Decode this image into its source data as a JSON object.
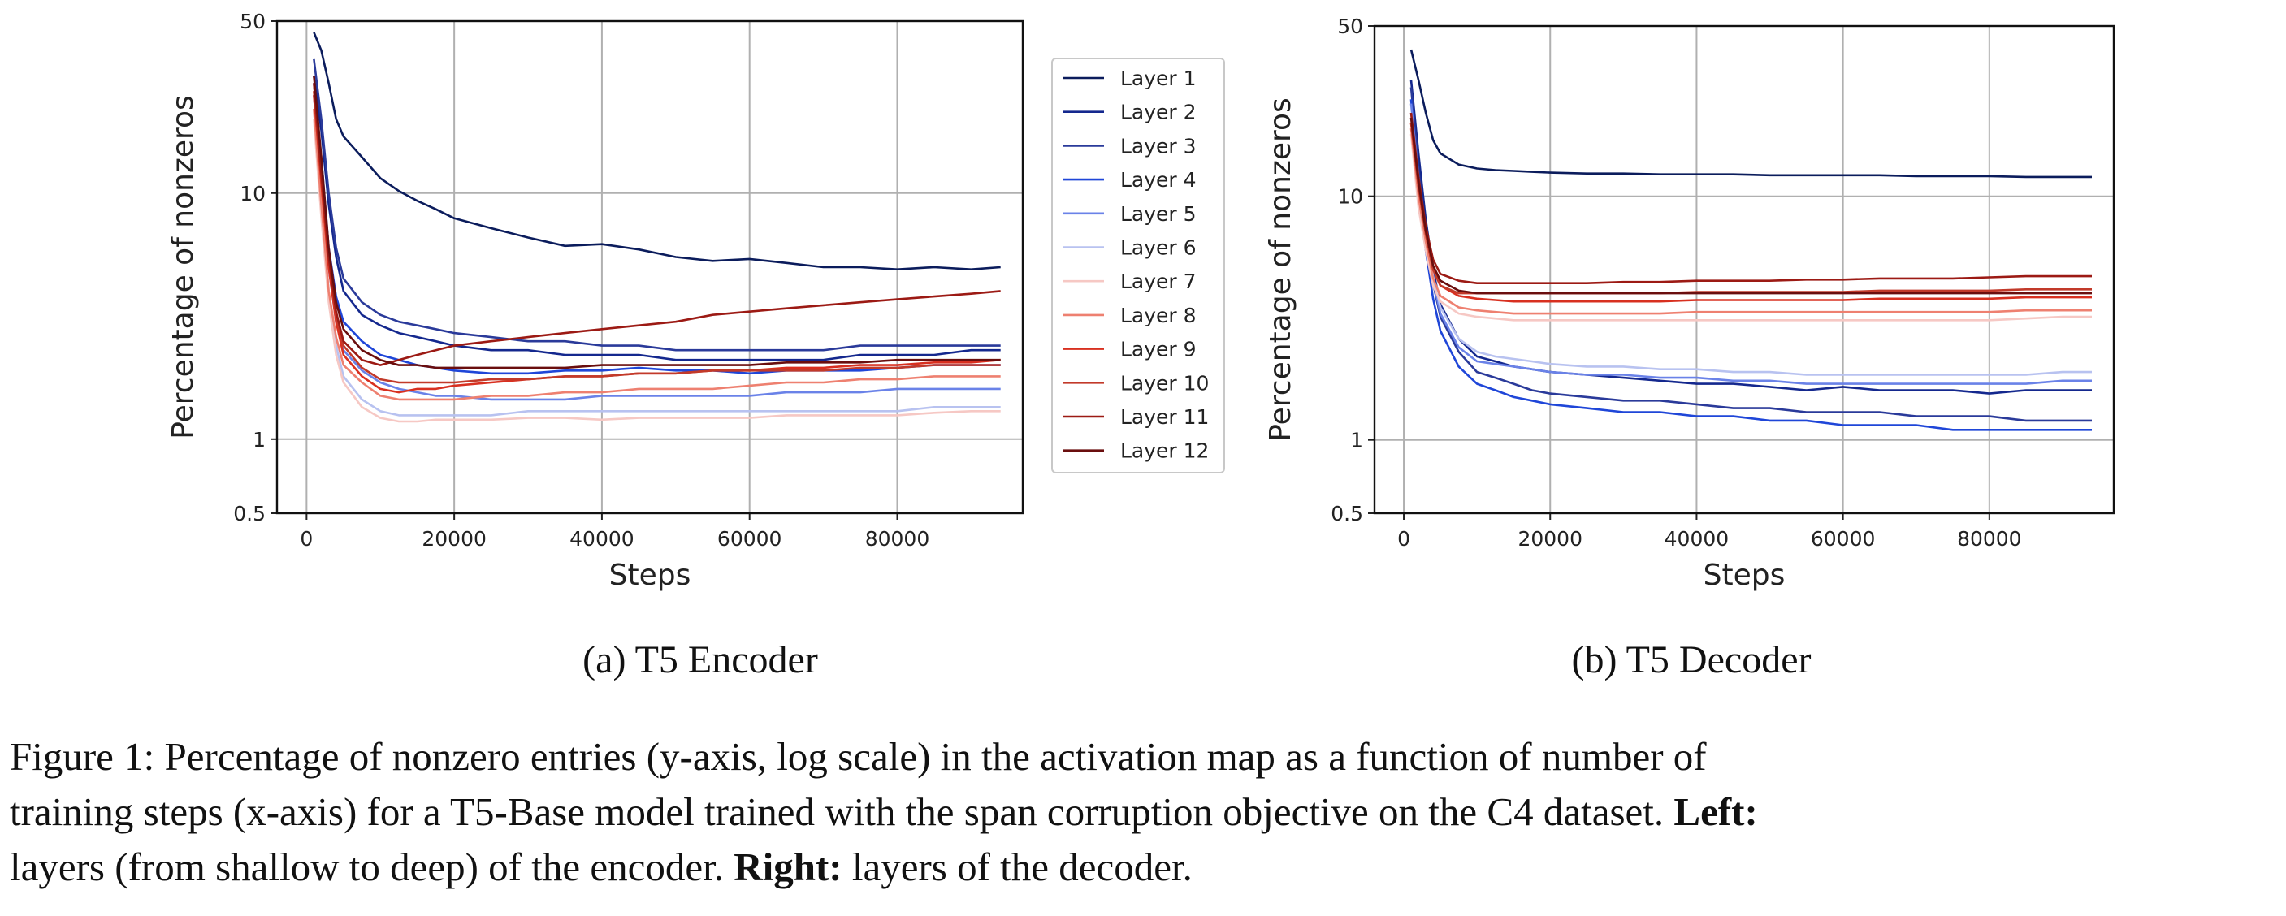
{
  "chart_data": [
    {
      "type": "line",
      "subcaption": "(a) T5 Encoder",
      "xlabel": "Steps",
      "ylabel": "Percentage of nonzeros",
      "y_scale": "log",
      "xlim": [
        -4000,
        97000
      ],
      "ylim": [
        0.5,
        50
      ],
      "x_ticks": [
        0,
        20000,
        40000,
        60000,
        80000
      ],
      "y_ticks": [
        0.5,
        1,
        10,
        50
      ],
      "grid": true,
      "legend": "outside-right",
      "x": [
        1000,
        2000,
        3000,
        4000,
        5000,
        7500,
        10000,
        12500,
        15000,
        17500,
        20000,
        25000,
        30000,
        35000,
        40000,
        45000,
        50000,
        55000,
        60000,
        65000,
        70000,
        75000,
        80000,
        85000,
        90000,
        94000
      ],
      "series": [
        {
          "name": "Layer 1",
          "color": "#0b1c5c",
          "values": [
            45,
            38,
            28,
            20,
            17,
            14,
            11.5,
            10.2,
            9.3,
            8.6,
            7.9,
            7.2,
            6.6,
            6.1,
            6.2,
            5.9,
            5.5,
            5.3,
            5.4,
            5.2,
            5.0,
            5.0,
            4.9,
            5.0,
            4.9,
            5.0
          ]
        },
        {
          "name": "Layer 2",
          "color": "#14288e",
          "values": [
            30,
            18,
            9,
            5.5,
            4.0,
            3.2,
            2.9,
            2.7,
            2.6,
            2.5,
            2.4,
            2.3,
            2.3,
            2.2,
            2.2,
            2.2,
            2.1,
            2.1,
            2.1,
            2.1,
            2.1,
            2.2,
            2.2,
            2.2,
            2.3,
            2.3
          ]
        },
        {
          "name": "Layer 3",
          "color": "#2a3a9a",
          "values": [
            35,
            20,
            10,
            6,
            4.5,
            3.6,
            3.2,
            3.0,
            2.9,
            2.8,
            2.7,
            2.6,
            2.5,
            2.5,
            2.4,
            2.4,
            2.3,
            2.3,
            2.3,
            2.3,
            2.3,
            2.4,
            2.4,
            2.4,
            2.4,
            2.4
          ]
        },
        {
          "name": "Layer 4",
          "color": "#1f46d8",
          "values": [
            28,
            14,
            6,
            3.8,
            3.0,
            2.5,
            2.2,
            2.1,
            2.0,
            1.95,
            1.9,
            1.85,
            1.85,
            1.9,
            1.9,
            1.95,
            1.9,
            1.9,
            1.85,
            1.9,
            1.9,
            1.9,
            1.95,
            2.0,
            2.0,
            2.0
          ]
        },
        {
          "name": "Layer 5",
          "color": "#6a82e8",
          "values": [
            25,
            11,
            5,
            3.0,
            2.3,
            1.9,
            1.7,
            1.6,
            1.55,
            1.5,
            1.5,
            1.45,
            1.45,
            1.45,
            1.5,
            1.5,
            1.5,
            1.5,
            1.5,
            1.55,
            1.55,
            1.55,
            1.6,
            1.6,
            1.6,
            1.6
          ]
        },
        {
          "name": "Layer 6",
          "color": "#b8c2f0",
          "values": [
            22,
            9,
            4,
            2.4,
            1.8,
            1.45,
            1.3,
            1.25,
            1.25,
            1.25,
            1.25,
            1.25,
            1.3,
            1.3,
            1.3,
            1.3,
            1.3,
            1.3,
            1.3,
            1.3,
            1.3,
            1.3,
            1.3,
            1.35,
            1.35,
            1.35
          ]
        },
        {
          "name": "Layer 7",
          "color": "#f6c8c4",
          "values": [
            20,
            8,
            3.6,
            2.2,
            1.7,
            1.35,
            1.22,
            1.18,
            1.18,
            1.2,
            1.2,
            1.2,
            1.22,
            1.22,
            1.2,
            1.22,
            1.22,
            1.22,
            1.22,
            1.25,
            1.25,
            1.25,
            1.25,
            1.28,
            1.3,
            1.3
          ]
        },
        {
          "name": "Layer 8",
          "color": "#ee8070",
          "values": [
            22,
            9,
            4,
            2.6,
            2.0,
            1.7,
            1.5,
            1.45,
            1.45,
            1.45,
            1.45,
            1.5,
            1.5,
            1.55,
            1.55,
            1.6,
            1.6,
            1.6,
            1.65,
            1.7,
            1.7,
            1.75,
            1.75,
            1.8,
            1.8,
            1.8
          ]
        },
        {
          "name": "Layer 9",
          "color": "#d83020",
          "values": [
            25,
            11,
            5,
            3.0,
            2.2,
            1.8,
            1.6,
            1.55,
            1.6,
            1.6,
            1.65,
            1.7,
            1.75,
            1.8,
            1.8,
            1.85,
            1.85,
            1.9,
            1.9,
            1.95,
            1.95,
            2.0,
            2.0,
            2.05,
            2.05,
            2.1
          ]
        },
        {
          "name": "Layer 10",
          "color": "#c23a2a",
          "values": [
            26,
            12,
            5.5,
            3.2,
            2.4,
            1.95,
            1.75,
            1.7,
            1.7,
            1.7,
            1.7,
            1.75,
            1.75,
            1.8,
            1.8,
            1.85,
            1.85,
            1.9,
            1.9,
            1.9,
            1.9,
            1.95,
            1.95,
            2.0,
            2.0,
            2.0
          ]
        },
        {
          "name": "Layer 11",
          "color": "#9c1a14",
          "values": [
            28,
            12,
            5.5,
            3.3,
            2.5,
            2.1,
            2.0,
            2.1,
            2.2,
            2.3,
            2.4,
            2.5,
            2.6,
            2.7,
            2.8,
            2.9,
            3.0,
            3.2,
            3.3,
            3.4,
            3.5,
            3.6,
            3.7,
            3.8,
            3.9,
            4.0
          ]
        },
        {
          "name": "Layer 12",
          "color": "#6a0e0e",
          "values": [
            30,
            14,
            6,
            3.6,
            2.8,
            2.3,
            2.1,
            2.0,
            2.0,
            1.95,
            1.95,
            1.95,
            1.95,
            1.95,
            2.0,
            2.0,
            2.0,
            2.0,
            2.0,
            2.05,
            2.05,
            2.05,
            2.1,
            2.1,
            2.1,
            2.1
          ]
        }
      ]
    },
    {
      "type": "line",
      "subcaption": "(b) T5 Decoder",
      "xlabel": "Steps",
      "ylabel": "Percentage of nonzeros",
      "y_scale": "log",
      "xlim": [
        -4000,
        97000
      ],
      "ylim": [
        0.5,
        50
      ],
      "x_ticks": [
        0,
        20000,
        40000,
        60000,
        80000
      ],
      "y_ticks": [
        0.5,
        1,
        10,
        50
      ],
      "grid": true,
      "legend": "none",
      "x": [
        1000,
        2000,
        3000,
        4000,
        5000,
        7500,
        10000,
        12500,
        15000,
        17500,
        20000,
        25000,
        30000,
        35000,
        40000,
        45000,
        50000,
        55000,
        60000,
        65000,
        70000,
        75000,
        80000,
        85000,
        90000,
        94000
      ],
      "series": [
        {
          "name": "Layer 1",
          "color": "#0b1c5c",
          "values": [
            40,
            30,
            22,
            17,
            15,
            13.5,
            13,
            12.8,
            12.7,
            12.6,
            12.5,
            12.4,
            12.4,
            12.3,
            12.3,
            12.3,
            12.2,
            12.2,
            12.2,
            12.2,
            12.1,
            12.1,
            12.1,
            12.0,
            12.0,
            12.0
          ]
        },
        {
          "name": "Layer 2",
          "color": "#14288e",
          "values": [
            30,
            15,
            8,
            5,
            3.6,
            2.6,
            2.2,
            2.1,
            2.0,
            1.95,
            1.9,
            1.85,
            1.8,
            1.75,
            1.7,
            1.7,
            1.65,
            1.6,
            1.65,
            1.6,
            1.6,
            1.6,
            1.55,
            1.6,
            1.6,
            1.6
          ]
        },
        {
          "name": "Layer 3",
          "color": "#2a3a9a",
          "values": [
            28,
            13,
            7,
            4.4,
            3.2,
            2.3,
            1.9,
            1.8,
            1.7,
            1.6,
            1.55,
            1.5,
            1.45,
            1.45,
            1.4,
            1.35,
            1.35,
            1.3,
            1.3,
            1.3,
            1.25,
            1.25,
            1.25,
            1.2,
            1.2,
            1.2
          ]
        },
        {
          "name": "Layer 4",
          "color": "#1f46d8",
          "values": [
            25,
            11,
            6,
            3.8,
            2.8,
            2.0,
            1.7,
            1.6,
            1.5,
            1.45,
            1.4,
            1.35,
            1.3,
            1.3,
            1.25,
            1.25,
            1.2,
            1.2,
            1.15,
            1.15,
            1.15,
            1.1,
            1.1,
            1.1,
            1.1,
            1.1
          ]
        },
        {
          "name": "Layer 5",
          "color": "#6a82e8",
          "values": [
            24,
            12,
            7,
            4.5,
            3.3,
            2.4,
            2.1,
            2.05,
            2.0,
            1.95,
            1.9,
            1.85,
            1.85,
            1.8,
            1.8,
            1.75,
            1.75,
            1.7,
            1.7,
            1.7,
            1.7,
            1.7,
            1.7,
            1.7,
            1.75,
            1.75
          ]
        },
        {
          "name": "Layer 6",
          "color": "#b8c2f0",
          "values": [
            22,
            11,
            7,
            4.7,
            3.5,
            2.6,
            2.3,
            2.2,
            2.15,
            2.1,
            2.05,
            2.0,
            2.0,
            1.95,
            1.95,
            1.9,
            1.9,
            1.85,
            1.85,
            1.85,
            1.85,
            1.85,
            1.85,
            1.85,
            1.9,
            1.9
          ]
        },
        {
          "name": "Layer 7",
          "color": "#f6c8c4",
          "values": [
            18,
            9,
            6,
            4.3,
            3.7,
            3.3,
            3.2,
            3.15,
            3.1,
            3.1,
            3.1,
            3.1,
            3.1,
            3.1,
            3.1,
            3.1,
            3.1,
            3.1,
            3.1,
            3.1,
            3.1,
            3.1,
            3.1,
            3.15,
            3.2,
            3.2
          ]
        },
        {
          "name": "Layer 8",
          "color": "#ee8070",
          "values": [
            19,
            10,
            6.5,
            4.6,
            3.9,
            3.5,
            3.4,
            3.35,
            3.3,
            3.3,
            3.3,
            3.3,
            3.3,
            3.3,
            3.35,
            3.35,
            3.35,
            3.35,
            3.35,
            3.35,
            3.35,
            3.35,
            3.35,
            3.4,
            3.4,
            3.4
          ]
        },
        {
          "name": "Layer 9",
          "color": "#d83020",
          "values": [
            20,
            11,
            7,
            5.0,
            4.3,
            3.9,
            3.8,
            3.75,
            3.7,
            3.7,
            3.7,
            3.7,
            3.7,
            3.7,
            3.75,
            3.75,
            3.75,
            3.75,
            3.75,
            3.8,
            3.8,
            3.8,
            3.8,
            3.85,
            3.85,
            3.85
          ]
        },
        {
          "name": "Layer 10",
          "color": "#c23a2a",
          "values": [
            20,
            11,
            7,
            5.0,
            4.3,
            4.0,
            4.0,
            4.0,
            4.0,
            4.0,
            4.0,
            4.0,
            4.0,
            4.0,
            4.05,
            4.05,
            4.05,
            4.05,
            4.05,
            4.1,
            4.1,
            4.1,
            4.1,
            4.15,
            4.15,
            4.15
          ]
        },
        {
          "name": "Layer 11",
          "color": "#9c1a14",
          "values": [
            22,
            12,
            7.5,
            5.5,
            4.8,
            4.5,
            4.4,
            4.4,
            4.4,
            4.4,
            4.4,
            4.4,
            4.45,
            4.45,
            4.5,
            4.5,
            4.5,
            4.55,
            4.55,
            4.6,
            4.6,
            4.6,
            4.65,
            4.7,
            4.7,
            4.7
          ]
        },
        {
          "name": "Layer 12",
          "color": "#6a0e0e",
          "values": [
            21,
            11.5,
            7.2,
            5.2,
            4.5,
            4.1,
            4.0,
            4.0,
            4.0,
            4.0,
            4.0,
            4.0,
            4.0,
            4.0,
            4.0,
            4.0,
            4.0,
            4.0,
            4.0,
            4.0,
            4.0,
            4.0,
            4.0,
            4.0,
            4.0,
            4.0
          ]
        }
      ]
    }
  ],
  "caption": {
    "line1": "Figure 1: Percentage of nonzero entries (y-axis, log scale) in the activation map as a function of number of",
    "line2_pre": "training steps (x-axis) for a T5-Base model trained with the span corruption objective on the C4 dataset. ",
    "left_bold": "Left:",
    "line3_pre": "layers (from shallow to deep) of the encoder. ",
    "right_bold": "Right:",
    "line3_post": " layers of the decoder."
  }
}
